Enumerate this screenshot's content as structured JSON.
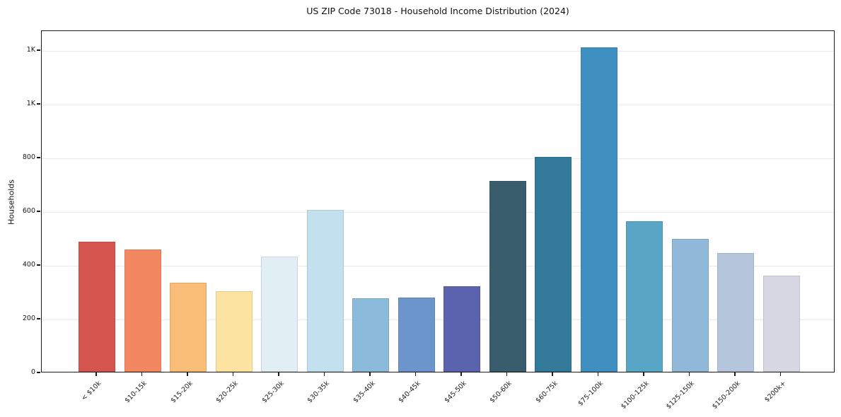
{
  "chart_data": {
    "type": "bar",
    "title": "US ZIP Code 73018 - Household Income Distribution (2024)",
    "xlabel": "",
    "ylabel": "Households",
    "categories": [
      "< $10k",
      "$10-15k",
      "$15-20k",
      "$20-25k",
      "$25-30k",
      "$30-35k",
      "$35-40k",
      "$40-45k",
      "$45-50k",
      "$50-60k",
      "$60-75k",
      "$75-100k",
      "$100-125k",
      "$125-150k",
      "$150-200k",
      "$200k+"
    ],
    "values": [
      484,
      455,
      332,
      300,
      429,
      602,
      274,
      276,
      318,
      711,
      800,
      1208,
      561,
      495,
      442,
      358
    ],
    "bar_colors": [
      "#d5544e",
      "#f3875f",
      "#f9bd78",
      "#fce3a0",
      "#e1eff4",
      "#c2e0ed",
      "#8cbada",
      "#6b95cb",
      "#5b62ae",
      "#3a5d6e",
      "#33799a",
      "#3f90c1",
      "#58a5c6",
      "#90b8d8",
      "#b5c6dc",
      "#d7d7e3"
    ],
    "ylim": [
      0,
      1274
    ],
    "yticks": {
      "values": [
        0,
        200,
        400,
        600,
        800,
        1000,
        1200
      ],
      "labels": [
        "0",
        "200",
        "400",
        "600",
        "800",
        "1K",
        "1K"
      ]
    },
    "grid": "horizontal",
    "legend": "none",
    "colors": {
      "grid": "#e9e9ec",
      "spine": "#1b1b1b",
      "background": "#ffffff"
    }
  }
}
